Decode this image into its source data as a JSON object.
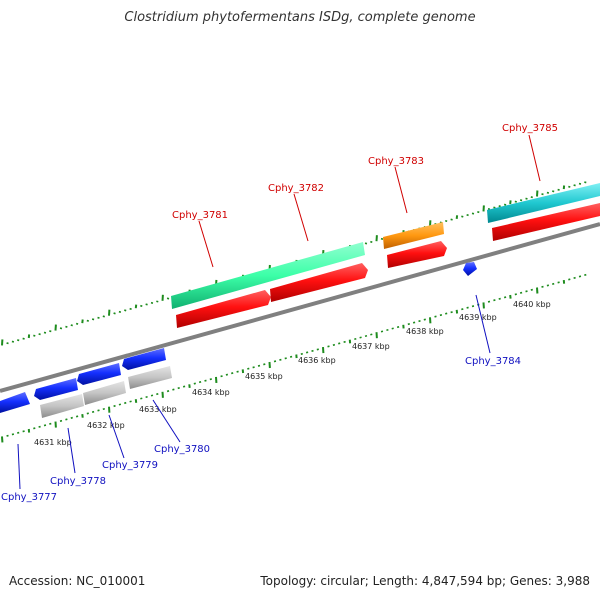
{
  "title": "Clostridium phytofermentans ISDg, complete genome",
  "footer": {
    "accession": "Accession: NC_010001",
    "summary": "Topology: circular; Length: 4,847,594 bp; Genes: 3,988"
  },
  "colors": {
    "backbone": "#808080",
    "tick": "#1e8c1e",
    "forward_label": "#d00000",
    "reverse_label": "#1010c0",
    "cds_red": "#ff1010",
    "cds_blue": "#1530ff",
    "cds_gray": "#c4c4c4",
    "cds_mint": "#3cffa8",
    "cds_orange": "#ff9810",
    "cds_cyan": "#20c8d0"
  },
  "kbp_labels": [
    "4631 kbp",
    "4632 kbp",
    "4633 kbp",
    "4634 kbp",
    "4635 kbp",
    "4636 kbp",
    "4637 kbp",
    "4638 kbp",
    "4639 kbp",
    "4640 kbp"
  ],
  "forward_labels": [
    "Cphy_3781",
    "Cphy_3782",
    "Cphy_3783",
    "Cphy_3785"
  ],
  "reverse_labels": [
    "Cphy_3777",
    "Cphy_3778",
    "Cphy_3779",
    "Cphy_3780",
    "Cphy_3784"
  ]
}
